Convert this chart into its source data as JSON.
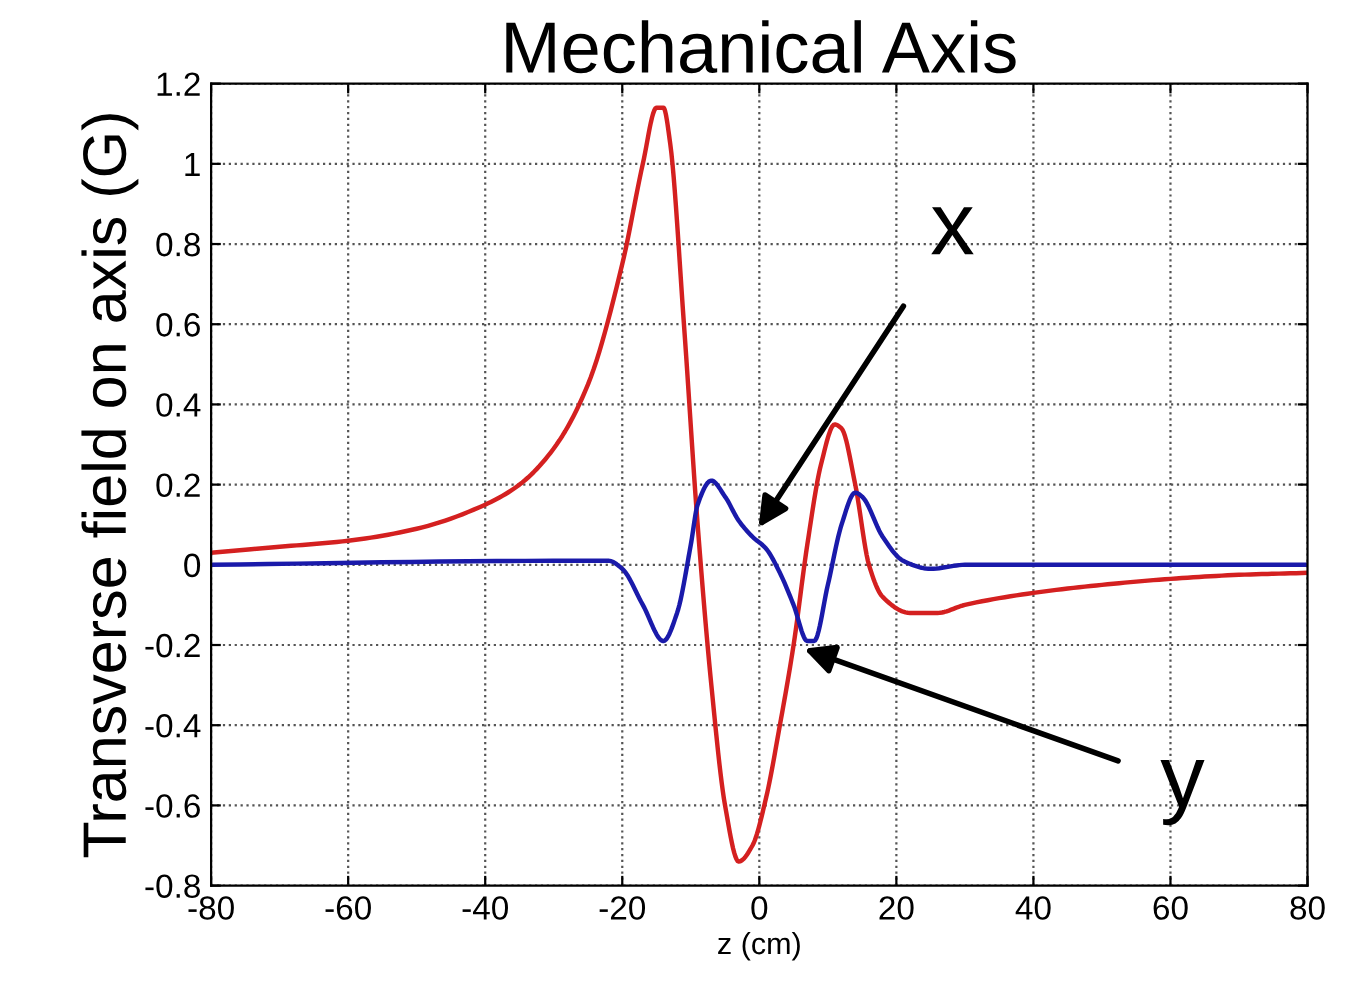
{
  "chart_data": {
    "type": "line",
    "title": "Mechanical Axis",
    "xlabel": "z (cm)",
    "ylabel": "Transverse field on axis (G)",
    "xlim": [
      -80,
      80
    ],
    "xticks": [
      -80,
      -60,
      -40,
      -20,
      0,
      20,
      40,
      60,
      80
    ],
    "ylim": [
      -0.8,
      1.2
    ],
    "yticks": [
      -0.8,
      -0.6,
      -0.4,
      -0.2,
      0,
      0.2,
      0.4,
      0.6,
      0.8,
      1,
      1.2
    ],
    "grid": true,
    "line_style": "solid",
    "marker": "none",
    "series": [
      {
        "name": "y",
        "color": "#d42020",
        "x": [
          -80,
          -70,
          -60,
          -50,
          -40,
          -35,
          -30,
          -25,
          -20,
          -17,
          -15,
          -14,
          -13,
          -11,
          -9,
          -7,
          -5,
          -3,
          -1,
          1,
          3,
          5,
          7,
          9,
          11,
          12,
          14,
          16,
          18,
          22,
          26,
          30,
          40,
          50,
          60,
          70,
          80
        ],
        "values": [
          0.03,
          0.045,
          0.06,
          0.09,
          0.15,
          0.2,
          0.29,
          0.45,
          0.75,
          1.0,
          1.14,
          1.14,
          1.05,
          0.6,
          0.1,
          -0.3,
          -0.6,
          -0.74,
          -0.7,
          -0.58,
          -0.4,
          -0.2,
          0.05,
          0.25,
          0.35,
          0.34,
          0.2,
          0.0,
          -0.08,
          -0.12,
          -0.12,
          -0.1,
          -0.07,
          -0.05,
          -0.035,
          -0.025,
          -0.02
        ]
      },
      {
        "name": "x",
        "color": "#1a1aaa",
        "x": [
          -80,
          -30,
          -22,
          -20,
          -17,
          -14,
          -12,
          -10,
          -9,
          -7,
          -5,
          -3,
          -1,
          1,
          3,
          5,
          7,
          8,
          10,
          12,
          14,
          15,
          18,
          21,
          25,
          30,
          80
        ],
        "values": [
          0,
          0.01,
          0.01,
          -0.01,
          -0.1,
          -0.19,
          -0.12,
          0.05,
          0.15,
          0.21,
          0.17,
          0.11,
          0.07,
          0.04,
          -0.02,
          -0.1,
          -0.19,
          -0.19,
          -0.05,
          0.1,
          0.18,
          0.17,
          0.07,
          0.01,
          -0.01,
          0,
          0
        ]
      }
    ]
  }
}
